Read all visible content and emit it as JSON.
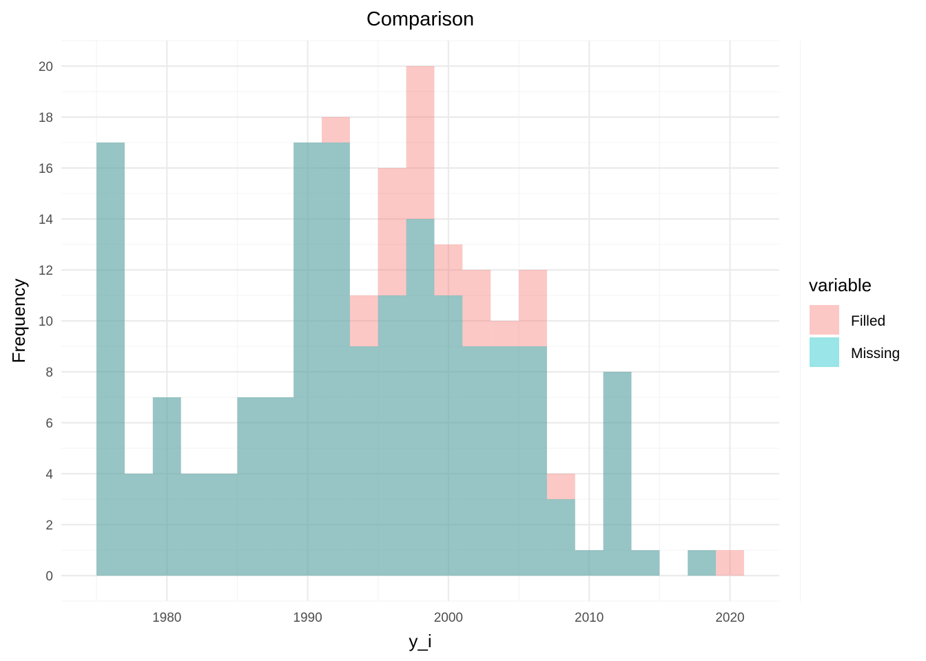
{
  "chart_data": {
    "type": "histogram",
    "title": "Comparison",
    "xlabel": "y_i",
    "ylabel": "Frequency",
    "xlim": [
      1972.5,
      2023.5
    ],
    "ylim": [
      -1,
      21
    ],
    "x_ticks": [
      1980,
      1990,
      2000,
      2010,
      2020
    ],
    "y_ticks": [
      0,
      2,
      4,
      6,
      8,
      10,
      12,
      14,
      16,
      18,
      20
    ],
    "bin_width": 2,
    "bins": [
      1976,
      1978,
      1980,
      1982,
      1984,
      1986,
      1988,
      1990,
      1992,
      1994,
      1996,
      1998,
      2000,
      2002,
      2004,
      2006,
      2008,
      2010,
      2012,
      2014,
      2016,
      2018,
      2020
    ],
    "legend": {
      "title": "variable",
      "position": "right"
    },
    "series": [
      {
        "name": "Filled",
        "color": "#F8766D",
        "values": [
          17,
          4,
          7,
          4,
          4,
          7,
          7,
          17,
          18,
          11,
          16,
          20,
          13,
          12,
          10,
          12,
          4,
          1,
          8,
          1,
          0,
          1,
          1
        ]
      },
      {
        "name": "Missing",
        "color": "#00BFC4",
        "values": [
          17,
          4,
          7,
          4,
          4,
          7,
          7,
          17,
          17,
          9,
          11,
          14,
          11,
          9,
          9,
          9,
          3,
          1,
          8,
          1,
          0,
          1,
          0
        ]
      }
    ],
    "grid": true
  }
}
